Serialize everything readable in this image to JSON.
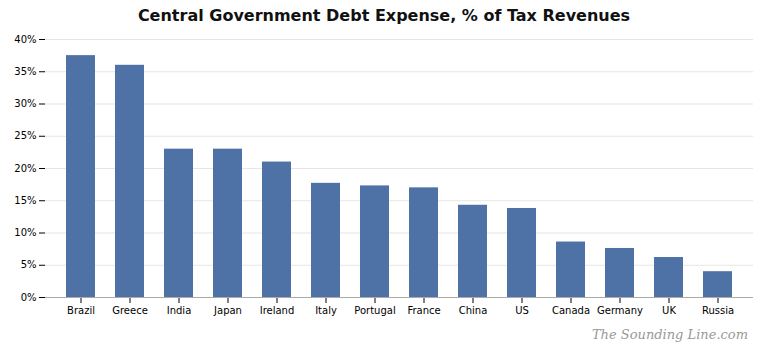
{
  "chart_data": {
    "type": "bar",
    "title": "Central Government Debt Expense, % of Tax Revenues",
    "categories": [
      "Brazil",
      "Greece",
      "India",
      "Japan",
      "Ireland",
      "Italy",
      "Portugal",
      "France",
      "China",
      "US",
      "Canada",
      "Germany",
      "UK",
      "Russia"
    ],
    "values": [
      37.5,
      36.0,
      23.0,
      23.0,
      21.0,
      17.7,
      17.3,
      17.0,
      14.3,
      13.8,
      8.6,
      7.6,
      6.2,
      4.0
    ],
    "color": "#4f72a6",
    "ylim": [
      0,
      40
    ],
    "yticks": [
      {
        "value": 0,
        "label": "0%"
      },
      {
        "value": 5,
        "label": "5%"
      },
      {
        "value": 10,
        "label": "10%"
      },
      {
        "value": 15,
        "label": "15%"
      },
      {
        "value": 20,
        "label": "20%"
      },
      {
        "value": 25,
        "label": "25%"
      },
      {
        "value": 30,
        "label": "30%"
      },
      {
        "value": 35,
        "label": "35%"
      },
      {
        "value": 40,
        "label": "40%"
      }
    ],
    "grid": true,
    "annotations": [
      "The Sounding Line.com"
    ]
  }
}
